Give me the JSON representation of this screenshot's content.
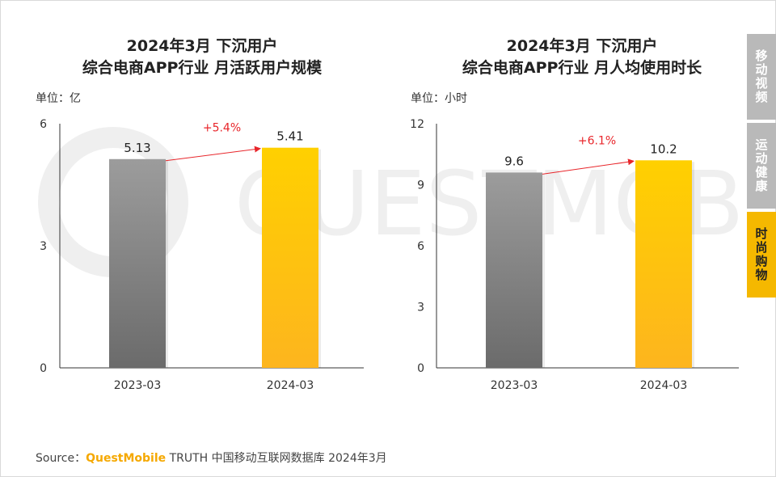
{
  "sidebar": {
    "tabs": [
      {
        "label": "移动视频",
        "active": false
      },
      {
        "label": "运动健康",
        "active": false
      },
      {
        "label": "时尚购物",
        "active": true
      }
    ]
  },
  "source": {
    "prefix": "Source：",
    "brand": "QuestMobile",
    "rest": " TRUTH 中国移动互联网数据库 2024年3月"
  },
  "watermark_text": "QUESTMOBILE",
  "colors": {
    "gray_top": "#9c9c9c",
    "gray_bottom": "#6b6b6b",
    "gold_top": "#ffd000",
    "gold_bottom": "#fdb51e",
    "arrow": "#e8262b"
  },
  "chart_data": [
    {
      "type": "bar",
      "title_line1": "2024年3月 下沉用户",
      "title_line2": "综合电商APP行业 月活跃用户规模",
      "unit": "单位：亿",
      "categories": [
        "2023-03",
        "2024-03"
      ],
      "values": [
        5.13,
        5.41
      ],
      "value_labels": [
        "5.13",
        "5.41"
      ],
      "yticks": [
        "0",
        "3",
        "6"
      ],
      "ylim": [
        0,
        6
      ],
      "growth": "+5.4%"
    },
    {
      "type": "bar",
      "title_line1": "2024年3月 下沉用户",
      "title_line2": "综合电商APP行业 月人均使用时长",
      "unit": "单位：小时",
      "categories": [
        "2023-03",
        "2024-03"
      ],
      "values": [
        9.6,
        10.2
      ],
      "value_labels": [
        "9.6",
        "10.2"
      ],
      "yticks": [
        "0",
        "3",
        "6",
        "9",
        "12"
      ],
      "ylim": [
        0,
        12
      ],
      "growth": "+6.1%"
    }
  ]
}
